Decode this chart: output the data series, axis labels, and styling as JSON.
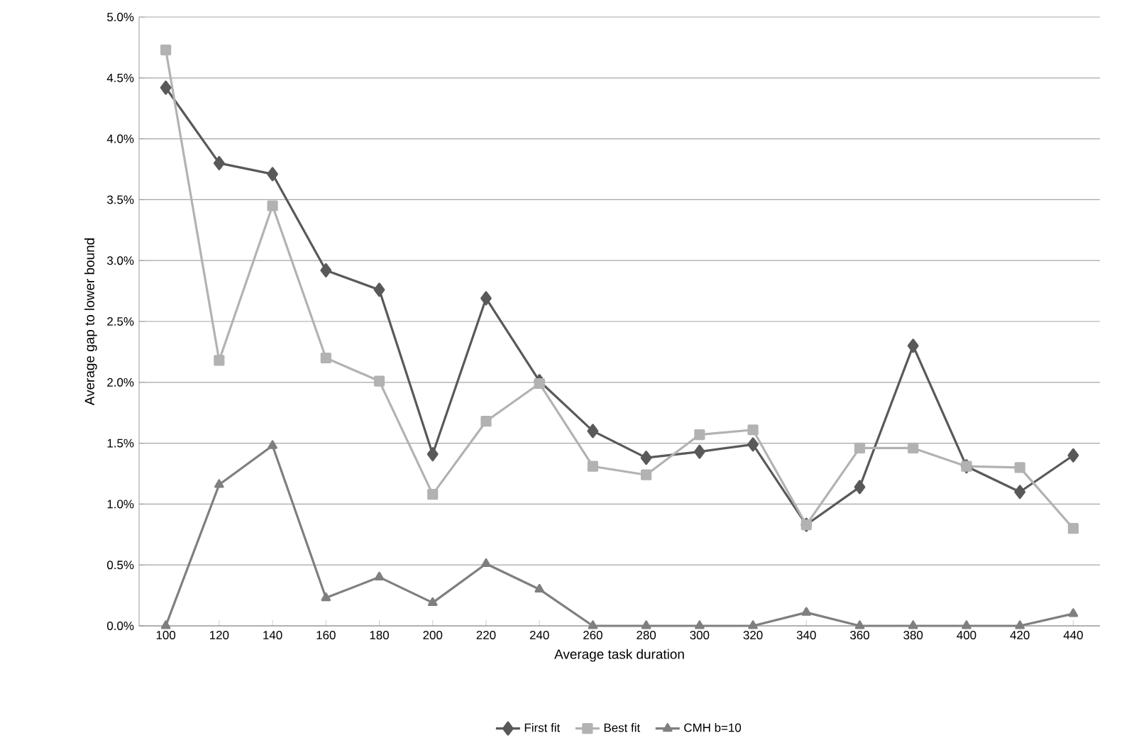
{
  "chart_data": {
    "type": "line",
    "xlabel": "Average task duration",
    "ylabel": "Average gap to lower bound",
    "categories": [
      "100",
      "120",
      "140",
      "160",
      "180",
      "200",
      "220",
      "240",
      "260",
      "280",
      "300",
      "320",
      "340",
      "360",
      "380",
      "400",
      "420",
      "440"
    ],
    "series": [
      {
        "name": "First fit",
        "color": "#595959",
        "marker": "diamond",
        "values": [
          4.42,
          3.8,
          3.71,
          2.92,
          2.76,
          1.41,
          2.69,
          2.01,
          1.6,
          1.38,
          1.43,
          1.49,
          0.83,
          1.14,
          2.3,
          1.31,
          1.1,
          1.4
        ]
      },
      {
        "name": "Best fit",
        "color": "#b2b2b2",
        "marker": "square",
        "values": [
          4.73,
          2.18,
          3.45,
          2.2,
          2.01,
          1.08,
          1.68,
          1.99,
          1.31,
          1.24,
          1.57,
          1.61,
          0.83,
          1.46,
          1.46,
          1.31,
          1.3,
          0.8
        ]
      },
      {
        "name": "CMH b=10",
        "color": "#7f7f7f",
        "marker": "triangle",
        "values": [
          0,
          1.16,
          1.48,
          0.23,
          0.4,
          0.19,
          0.51,
          0.3,
          0,
          0,
          0,
          0,
          0.11,
          0,
          0,
          0,
          0,
          0.1
        ]
      }
    ],
    "ylim": [
      0,
      5
    ],
    "yticks": [
      {
        "value": 0,
        "label": "0.0%"
      },
      {
        "value": 0.5,
        "label": "0.5%"
      },
      {
        "value": 1,
        "label": "1.0%"
      },
      {
        "value": 1.5,
        "label": "1.5%"
      },
      {
        "value": 2,
        "label": "2.0%"
      },
      {
        "value": 2.5,
        "label": "2.5%"
      },
      {
        "value": 3,
        "label": "3.0%"
      },
      {
        "value": 3.5,
        "label": "3.5%"
      },
      {
        "value": 4,
        "label": "4.0%"
      },
      {
        "value": 4.5,
        "label": "4.5%"
      },
      {
        "value": 5,
        "label": "5.0%"
      }
    ],
    "grid": "y",
    "legend": "bottom",
    "line_style": "solid"
  }
}
